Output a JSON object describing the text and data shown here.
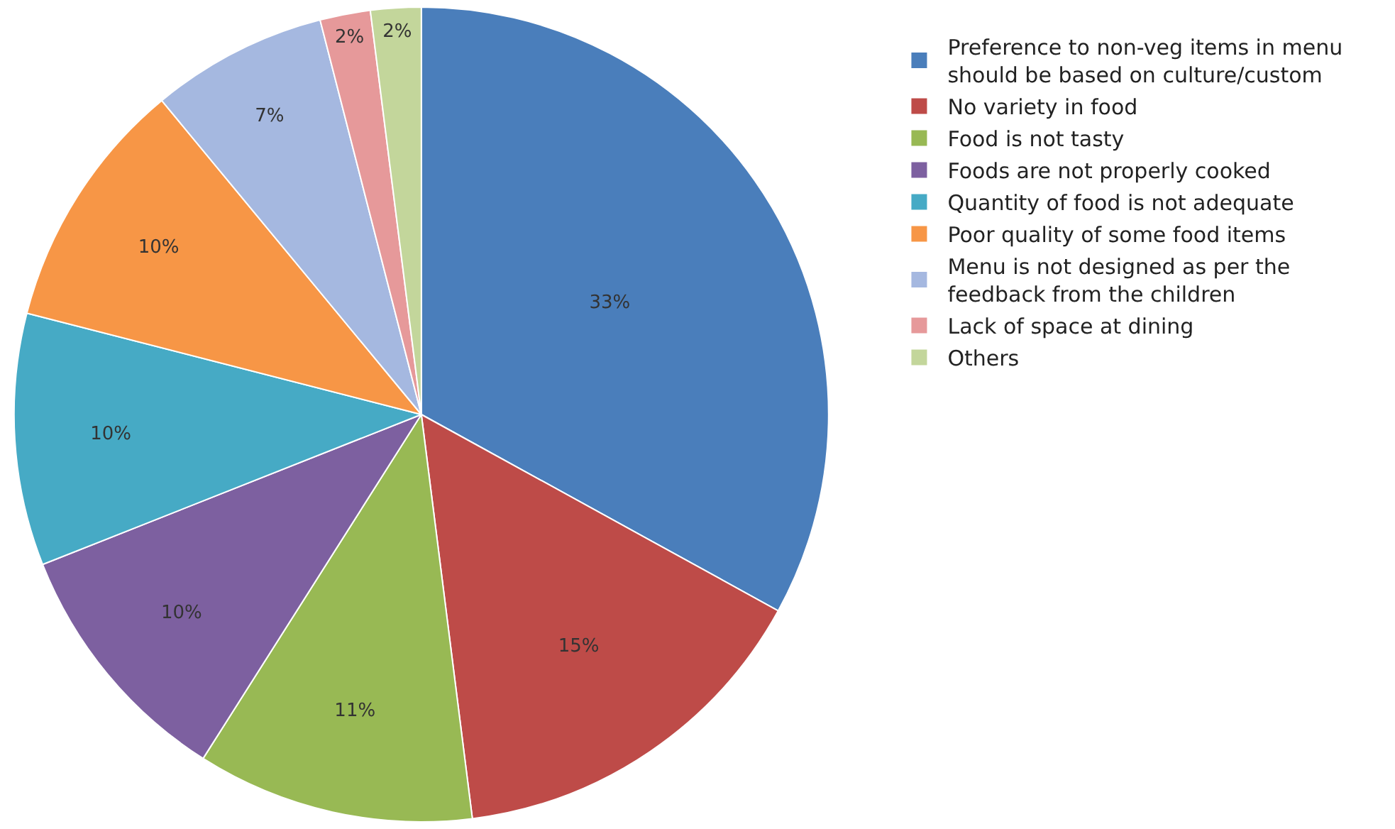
{
  "chart_data": {
    "type": "pie",
    "categories": [
      "Preference to non-veg items in menu should be based on culture/custom",
      "No variety in food",
      "Food is not tasty",
      "Foods are not properly cooked",
      "Quantity of food is not adequate",
      "Poor quality of some food items",
      "Menu is not designed as per the feedback from the children",
      "Lack of space at dining",
      "Others"
    ],
    "values": [
      33,
      15,
      11,
      10,
      10,
      10,
      7,
      2,
      2
    ],
    "value_labels": [
      "33%",
      "15%",
      "11%",
      "10%",
      "10%",
      "10%",
      "7%",
      "2%",
      "2%"
    ],
    "colors": [
      "#4a7ebb",
      "#be4b48",
      "#98b954",
      "#7d60a0",
      "#46aac5",
      "#f79646",
      "#a5b8e0",
      "#e6999a",
      "#c3d69b"
    ],
    "legend": "right"
  }
}
